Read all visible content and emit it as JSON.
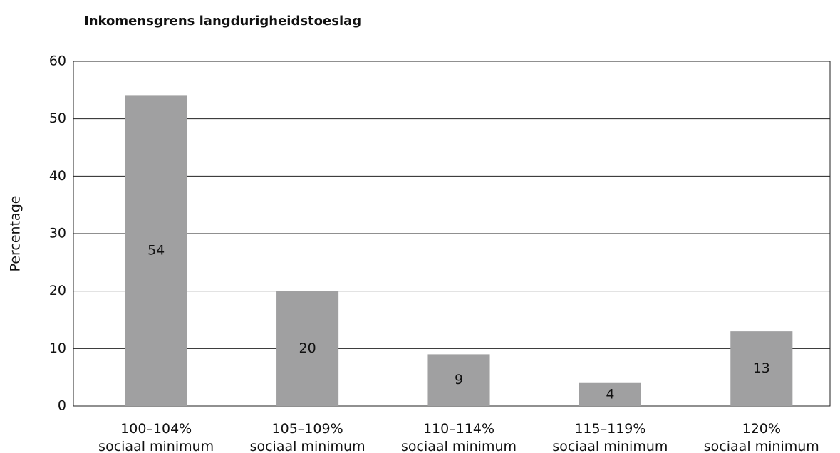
{
  "chart_data": {
    "type": "bar",
    "title": "Inkomensgrens langdurigheidstoeslag",
    "y_label": "Percentage",
    "categories": [
      "100–104%\nsociaal minimum",
      "105–109%\nsociaal minimum",
      "110–114%\nsociaal minimum",
      "115–119%\nsociaal minimum",
      "120%\nsociaal minimum"
    ],
    "values": [
      54,
      20,
      9,
      4,
      13
    ],
    "color": "#a0a0a1",
    "ylim": [
      0,
      60
    ],
    "yticks": [
      0,
      10,
      20,
      30,
      40,
      50,
      60
    ],
    "grid": true,
    "data_labels": true
  }
}
